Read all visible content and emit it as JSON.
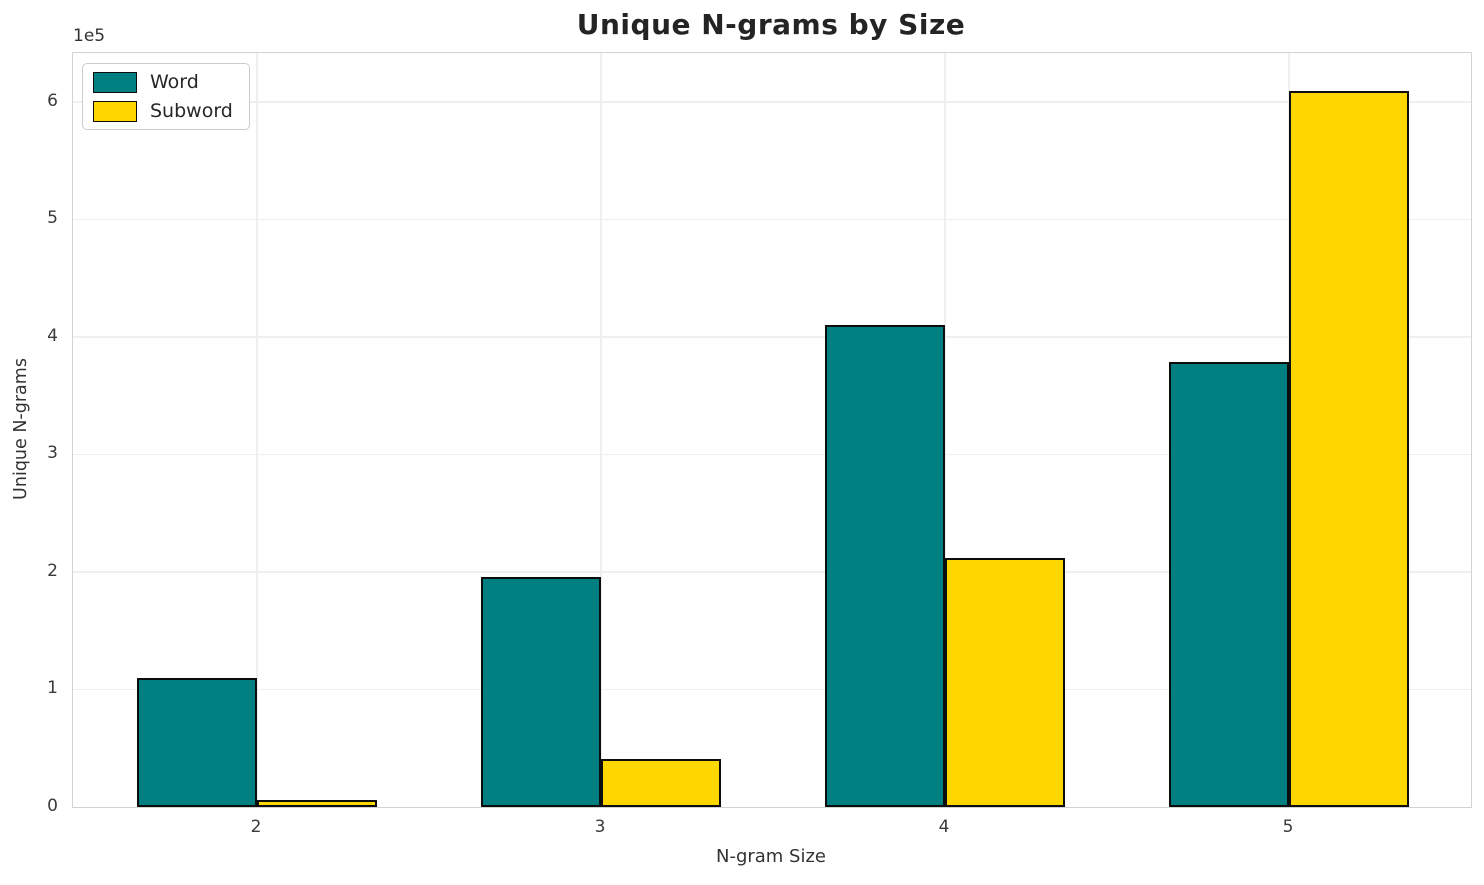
{
  "chart_data": {
    "type": "bar",
    "title": "Unique N-grams by Size",
    "xlabel": "N-gram Size",
    "ylabel": "Unique N-grams",
    "y_offset_text": "1e5",
    "categories": [
      2,
      3,
      4,
      5
    ],
    "series": [
      {
        "name": "Word",
        "color": "#008080",
        "values": [
          110000,
          196000,
          410000,
          379000
        ]
      },
      {
        "name": "Subword",
        "color": "#FFD700",
        "values": [
          6000,
          41000,
          212000,
          609000
        ]
      }
    ],
    "bar_width": 0.35,
    "bar_edge_color": "#000000",
    "xlim": [
      1.465,
      5.529
    ],
    "ylim": [
      0,
      641500
    ],
    "yticks": [
      0,
      100000,
      200000,
      300000,
      400000,
      500000,
      600000
    ],
    "ytick_labels": [
      "0",
      "1",
      "2",
      "3",
      "4",
      "5",
      "6"
    ],
    "xtick_labels": [
      "2",
      "3",
      "4",
      "5"
    ],
    "grid": true,
    "legend_position": "upper left"
  },
  "legend": {
    "items": [
      {
        "label": "Word",
        "color": "#008080"
      },
      {
        "label": "Subword",
        "color": "#FFD700"
      }
    ]
  }
}
